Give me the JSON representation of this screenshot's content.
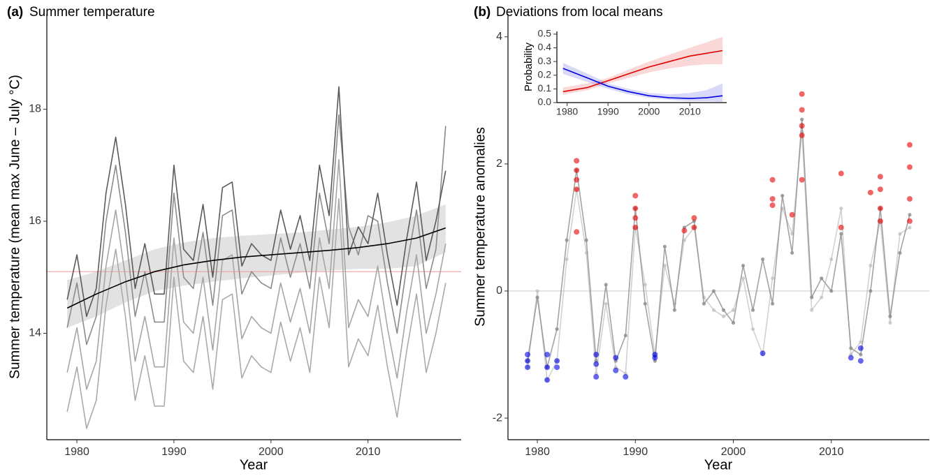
{
  "chart_data": [
    {
      "type": "line",
      "panel_label": "(a)",
      "title": "Summer temperature",
      "xlabel": "Year",
      "ylabel": "Summer temperature (mean max June – July °C)",
      "xlim": [
        1976.9,
        2019.6
      ],
      "ylim": [
        12.1,
        19.7
      ],
      "xticks": [
        1980,
        1990,
        2000,
        2010
      ],
      "yticks": [
        14,
        16,
        18
      ],
      "x": [
        1979,
        1980,
        1981,
        1982,
        1983,
        1984,
        1985,
        1986,
        1987,
        1988,
        1989,
        1990,
        1991,
        1992,
        1993,
        1994,
        1995,
        1996,
        1997,
        1998,
        1999,
        2000,
        2001,
        2002,
        2003,
        2004,
        2005,
        2006,
        2007,
        2008,
        2009,
        2010,
        2011,
        2012,
        2013,
        2014,
        2015,
        2016,
        2017,
        2018
      ],
      "bands": [
        {
          "color": "rgba(160,160,160,0.3)",
          "x": [
            1979,
            1982,
            1985,
            1988,
            1991,
            1994,
            1997,
            2000,
            2003,
            2006,
            2009,
            2012,
            2015,
            2018
          ],
          "lower": [
            14.1,
            14.3,
            14.55,
            14.75,
            14.85,
            14.92,
            14.98,
            15.03,
            15.08,
            15.12,
            15.15,
            15.15,
            15.2,
            15.45
          ],
          "upper": [
            14.95,
            15.1,
            15.3,
            15.5,
            15.62,
            15.7,
            15.74,
            15.77,
            15.8,
            15.85,
            15.9,
            15.98,
            16.1,
            16.3
          ]
        }
      ],
      "hlines": [
        {
          "value": 15.1,
          "color": "#f4a0a0"
        }
      ],
      "series": [
        {
          "color": "#aaaaaa",
          "values": [
            12.6,
            13.4,
            12.3,
            12.8,
            14.5,
            15.5,
            14.3,
            12.8,
            13.6,
            12.7,
            12.7,
            15.0,
            13.5,
            13.3,
            14.3,
            13.0,
            14.6,
            14.7,
            13.2,
            13.6,
            13.4,
            13.3,
            14.2,
            13.5,
            14.1,
            13.3,
            15.0,
            14.1,
            16.4,
            13.4,
            13.9,
            13.6,
            14.5,
            13.4,
            12.5,
            13.7,
            14.7,
            13.3,
            14.0,
            14.9
          ]
        },
        {
          "color": "#a6a6a6",
          "values": [
            13.3,
            14.1,
            13.0,
            13.5,
            15.2,
            16.2,
            15.0,
            13.5,
            14.3,
            13.4,
            13.4,
            15.7,
            14.2,
            14.0,
            15.0,
            13.7,
            15.3,
            15.4,
            13.9,
            14.3,
            14.1,
            14.0,
            14.9,
            14.2,
            14.8,
            14.0,
            15.7,
            14.8,
            17.1,
            14.1,
            14.6,
            14.3,
            15.2,
            14.1,
            13.2,
            14.4,
            15.4,
            14.0,
            14.7,
            15.6
          ]
        },
        {
          "color": "#8c8c8c",
          "values": [
            14.1,
            14.9,
            13.8,
            14.3,
            16.0,
            17.0,
            15.8,
            14.3,
            15.1,
            14.2,
            14.2,
            16.5,
            15.0,
            14.8,
            15.8,
            14.5,
            16.1,
            16.2,
            14.7,
            15.1,
            14.9,
            14.8,
            15.7,
            15.0,
            15.6,
            14.8,
            16.5,
            15.6,
            17.9,
            15.9,
            15.4,
            16.1,
            16.0,
            14.9,
            14.0,
            15.2,
            16.2,
            14.8,
            15.5,
            17.7
          ]
        },
        {
          "color": "#5a5a5a",
          "values": [
            14.6,
            15.4,
            14.3,
            14.8,
            16.5,
            17.5,
            16.3,
            14.8,
            15.6,
            14.7,
            14.7,
            17.0,
            15.5,
            15.3,
            16.3,
            15.0,
            16.6,
            16.7,
            15.2,
            15.6,
            15.4,
            15.3,
            16.2,
            15.5,
            16.1,
            15.3,
            17.0,
            16.1,
            18.4,
            15.4,
            15.9,
            15.6,
            16.5,
            15.4,
            14.5,
            15.7,
            16.7,
            15.3,
            16.0,
            16.9
          ]
        },
        {
          "color": "#000000",
          "x": [
            1979,
            1982,
            1985,
            1988,
            1991,
            1994,
            1997,
            2000,
            2003,
            2006,
            2009,
            2012,
            2015,
            2018
          ],
          "values": [
            14.45,
            14.7,
            14.92,
            15.1,
            15.22,
            15.3,
            15.36,
            15.4,
            15.44,
            15.48,
            15.53,
            15.6,
            15.7,
            15.88
          ]
        }
      ]
    },
    {
      "type": "line",
      "panel_label": "(b)",
      "title": "Deviations from local means",
      "xlabel": "Year",
      "ylabel": "Summer temperature anomalies",
      "xlim": [
        1977,
        2020
      ],
      "ylim": [
        -2.34,
        4.36
      ],
      "xticks": [
        1980,
        1990,
        2000,
        2010
      ],
      "yticks": [
        -2,
        0,
        2,
        4
      ],
      "x": [
        1979,
        1980,
        1981,
        1982,
        1983,
        1984,
        1985,
        1986,
        1987,
        1988,
        1989,
        1990,
        1991,
        1992,
        1993,
        1994,
        1995,
        1996,
        1997,
        1998,
        1999,
        2000,
        2001,
        2002,
        2003,
        2004,
        2005,
        2006,
        2007,
        2008,
        2009,
        2010,
        2011,
        2012,
        2013,
        2014,
        2015,
        2016,
        2017,
        2018
      ],
      "hlines": [
        {
          "value": 0,
          "color": "#d0d0d0"
        }
      ],
      "series": [
        {
          "color": "rgba(190,190,190,0.7)",
          "markers": true,
          "values": [
            -1.2,
            0.0,
            -1.4,
            -1.1,
            0.5,
            1.6,
            0.6,
            -1.3,
            -0.2,
            -1.2,
            -1.3,
            1.0,
            0.1,
            -1.0,
            0.4,
            -0.2,
            0.8,
            1.0,
            -0.1,
            -0.3,
            -0.4,
            -0.3,
            0.2,
            -0.6,
            -1.0,
            0.2,
            1.3,
            0.9,
            2.5,
            -0.3,
            -0.1,
            0.5,
            1.3,
            -1.0,
            -0.8,
            0.4,
            1.1,
            -0.5,
            0.9,
            1.0
          ]
        },
        {
          "color": "rgba(140,140,140,0.8)",
          "markers": true,
          "values": [
            -1.1,
            -0.1,
            -1.2,
            -0.6,
            0.8,
            1.9,
            0.8,
            -1.1,
            0.1,
            -1.1,
            -0.7,
            1.3,
            -0.2,
            -1.1,
            0.7,
            -0.3,
            1.0,
            1.1,
            -0.2,
            0.0,
            -0.3,
            -0.5,
            0.4,
            -0.3,
            0.5,
            -0.2,
            1.5,
            0.6,
            2.7,
            -0.1,
            0.2,
            0.0,
            0.9,
            -0.9,
            -1.0,
            0.0,
            1.3,
            -0.4,
            0.6,
            1.2
          ]
        },
        {
          "color": "rgba(230,0,0,0.6)",
          "line": false,
          "markers": true,
          "x": [
            1984,
            1984,
            1984,
            1984,
            1984,
            1990,
            1990,
            1990,
            1990,
            1995,
            1996,
            1996,
            2004,
            2004,
            2004,
            2006,
            2007,
            2007,
            2007,
            2007,
            2007,
            2011,
            2011,
            2014,
            2015,
            2015,
            2015,
            2015,
            2018,
            2018,
            2018,
            2018
          ],
          "values": [
            1.6,
            1.9,
            2.05,
            1.75,
            0.93,
            1.5,
            1.3,
            1.15,
            1.0,
            0.95,
            1.15,
            1.0,
            1.75,
            1.45,
            1.35,
            1.2,
            3.1,
            2.85,
            2.6,
            2.45,
            1.75,
            1.85,
            1.0,
            1.55,
            1.8,
            1.6,
            1.3,
            1.1,
            2.3,
            1.95,
            1.45,
            1.1
          ]
        },
        {
          "color": "rgba(0,0,230,0.6)",
          "line": false,
          "markers": true,
          "x": [
            1979,
            1979,
            1979,
            1981,
            1981,
            1981,
            1982,
            1982,
            1986,
            1986,
            1986,
            1988,
            1988,
            1989,
            1992,
            1992,
            2003,
            2012,
            2013,
            2013
          ],
          "values": [
            -1.0,
            -1.1,
            -1.2,
            -1.0,
            -1.2,
            -1.4,
            -1.1,
            -1.2,
            -1.0,
            -1.15,
            -1.35,
            -1.05,
            -1.25,
            -1.35,
            -1.0,
            -1.05,
            -0.98,
            -1.05,
            -0.9,
            -1.1
          ]
        }
      ]
    },
    {
      "type": "line",
      "ylabel": "Probability",
      "xlim": [
        1977.5,
        2019
      ],
      "ylim": [
        0,
        0.52
      ],
      "xticks": [
        1980,
        1990,
        2000,
        2010
      ],
      "yticks": [
        {
          "value": 0,
          "label": "0.0"
        },
        0.1,
        0.2,
        0.3,
        0.4,
        0.5
      ],
      "x": [
        1979,
        1985,
        1990,
        1995,
        2000,
        2005,
        2010,
        2014,
        2018
      ],
      "bands": [
        {
          "color": "rgba(240,100,100,0.25)",
          "x": [
            1979,
            1985,
            1990,
            1995,
            2000,
            2005,
            2010,
            2014,
            2018
          ],
          "lower": [
            0.06,
            0.09,
            0.14,
            0.18,
            0.22,
            0.25,
            0.27,
            0.28,
            0.28
          ],
          "upper": [
            0.11,
            0.14,
            0.18,
            0.24,
            0.3,
            0.35,
            0.4,
            0.44,
            0.48
          ]
        },
        {
          "color": "rgba(100,100,240,0.25)",
          "x": [
            1979,
            1985,
            1990,
            1995,
            2000,
            2005,
            2010,
            2014,
            2018
          ],
          "lower": [
            0.21,
            0.15,
            0.1,
            0.06,
            0.035,
            0.02,
            0.01,
            0.01,
            0.005
          ],
          "upper": [
            0.29,
            0.21,
            0.14,
            0.1,
            0.07,
            0.06,
            0.07,
            0.09,
            0.14
          ]
        }
      ],
      "series": [
        {
          "color": "#e00000",
          "values": [
            0.08,
            0.11,
            0.16,
            0.21,
            0.26,
            0.3,
            0.34,
            0.36,
            0.38
          ]
        },
        {
          "color": "#0000e0",
          "values": [
            0.25,
            0.18,
            0.12,
            0.08,
            0.05,
            0.035,
            0.03,
            0.035,
            0.05
          ]
        }
      ]
    }
  ]
}
